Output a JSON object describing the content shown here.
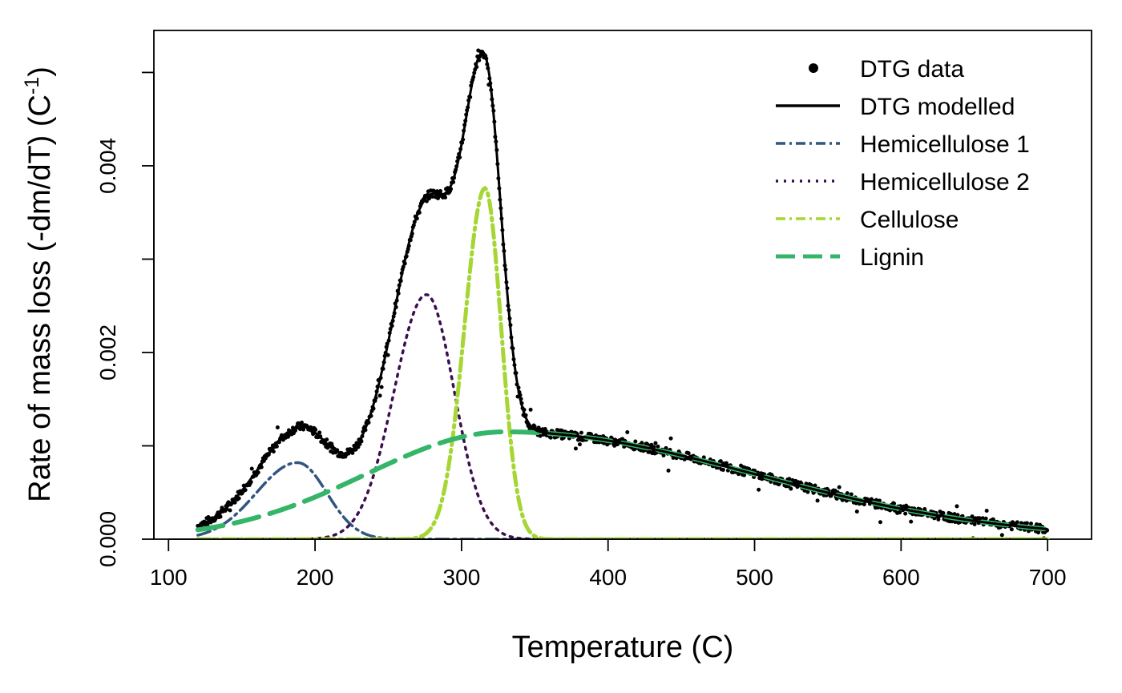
{
  "chart_data": {
    "type": "line",
    "title": "",
    "xlabel": "Temperature (C)",
    "ylabel_main": "Rate of mass loss (-dm/dT) (C",
    "ylabel_sup": "-1",
    "ylabel_close": ")",
    "xlim": [
      90,
      730
    ],
    "ylim": [
      0.0,
      0.00545
    ],
    "x_ticks": [
      100,
      200,
      300,
      400,
      500,
      600,
      700
    ],
    "x_tick_labels": [
      "100",
      "200",
      "300",
      "400",
      "500",
      "600",
      "700"
    ],
    "y_ticks": [
      0.0,
      0.001,
      0.002,
      0.003,
      0.004,
      0.005
    ],
    "y_tick_labels": [
      "0.000",
      "",
      "0.002",
      "",
      "0.004",
      ""
    ],
    "grid": false,
    "legend_position": "top-right",
    "legend": [
      {
        "name": "DTG data",
        "style": "points",
        "color": "#000000"
      },
      {
        "name": "DTG modelled",
        "style": "solid",
        "color": "#000000"
      },
      {
        "name": "Hemicellulose 1",
        "style": "dashdot",
        "color": "#31567f"
      },
      {
        "name": "Hemicellulose 2",
        "style": "dotted",
        "color": "#3b0f4f"
      },
      {
        "name": "Cellulose",
        "style": "dashdot",
        "color": "#a5d633"
      },
      {
        "name": "Lignin",
        "style": "longdash",
        "color": "#35b569"
      }
    ],
    "components": [
      {
        "name": "Hemicellulose 1",
        "peak_x": 188,
        "peak_y": 0.00082,
        "width_left": 28,
        "width_right": 20,
        "color": "#31567f"
      },
      {
        "name": "Hemicellulose 2",
        "peak_x": 276,
        "peak_y": 0.00262,
        "width_left": 22,
        "width_right": 19,
        "color": "#3b0f4f"
      },
      {
        "name": "Cellulose",
        "peak_x": 316,
        "peak_y": 0.00376,
        "width_left": 14,
        "width_right": 11,
        "color": "#a5d633"
      },
      {
        "name": "Lignin",
        "peak_x": 330,
        "peak_y": 0.00115,
        "width_left": 95,
        "width_right": 170,
        "color": "#35b569"
      }
    ],
    "data_x_range": [
      120,
      700
    ],
    "data_peak": {
      "x": 313,
      "y": 0.00525
    }
  }
}
